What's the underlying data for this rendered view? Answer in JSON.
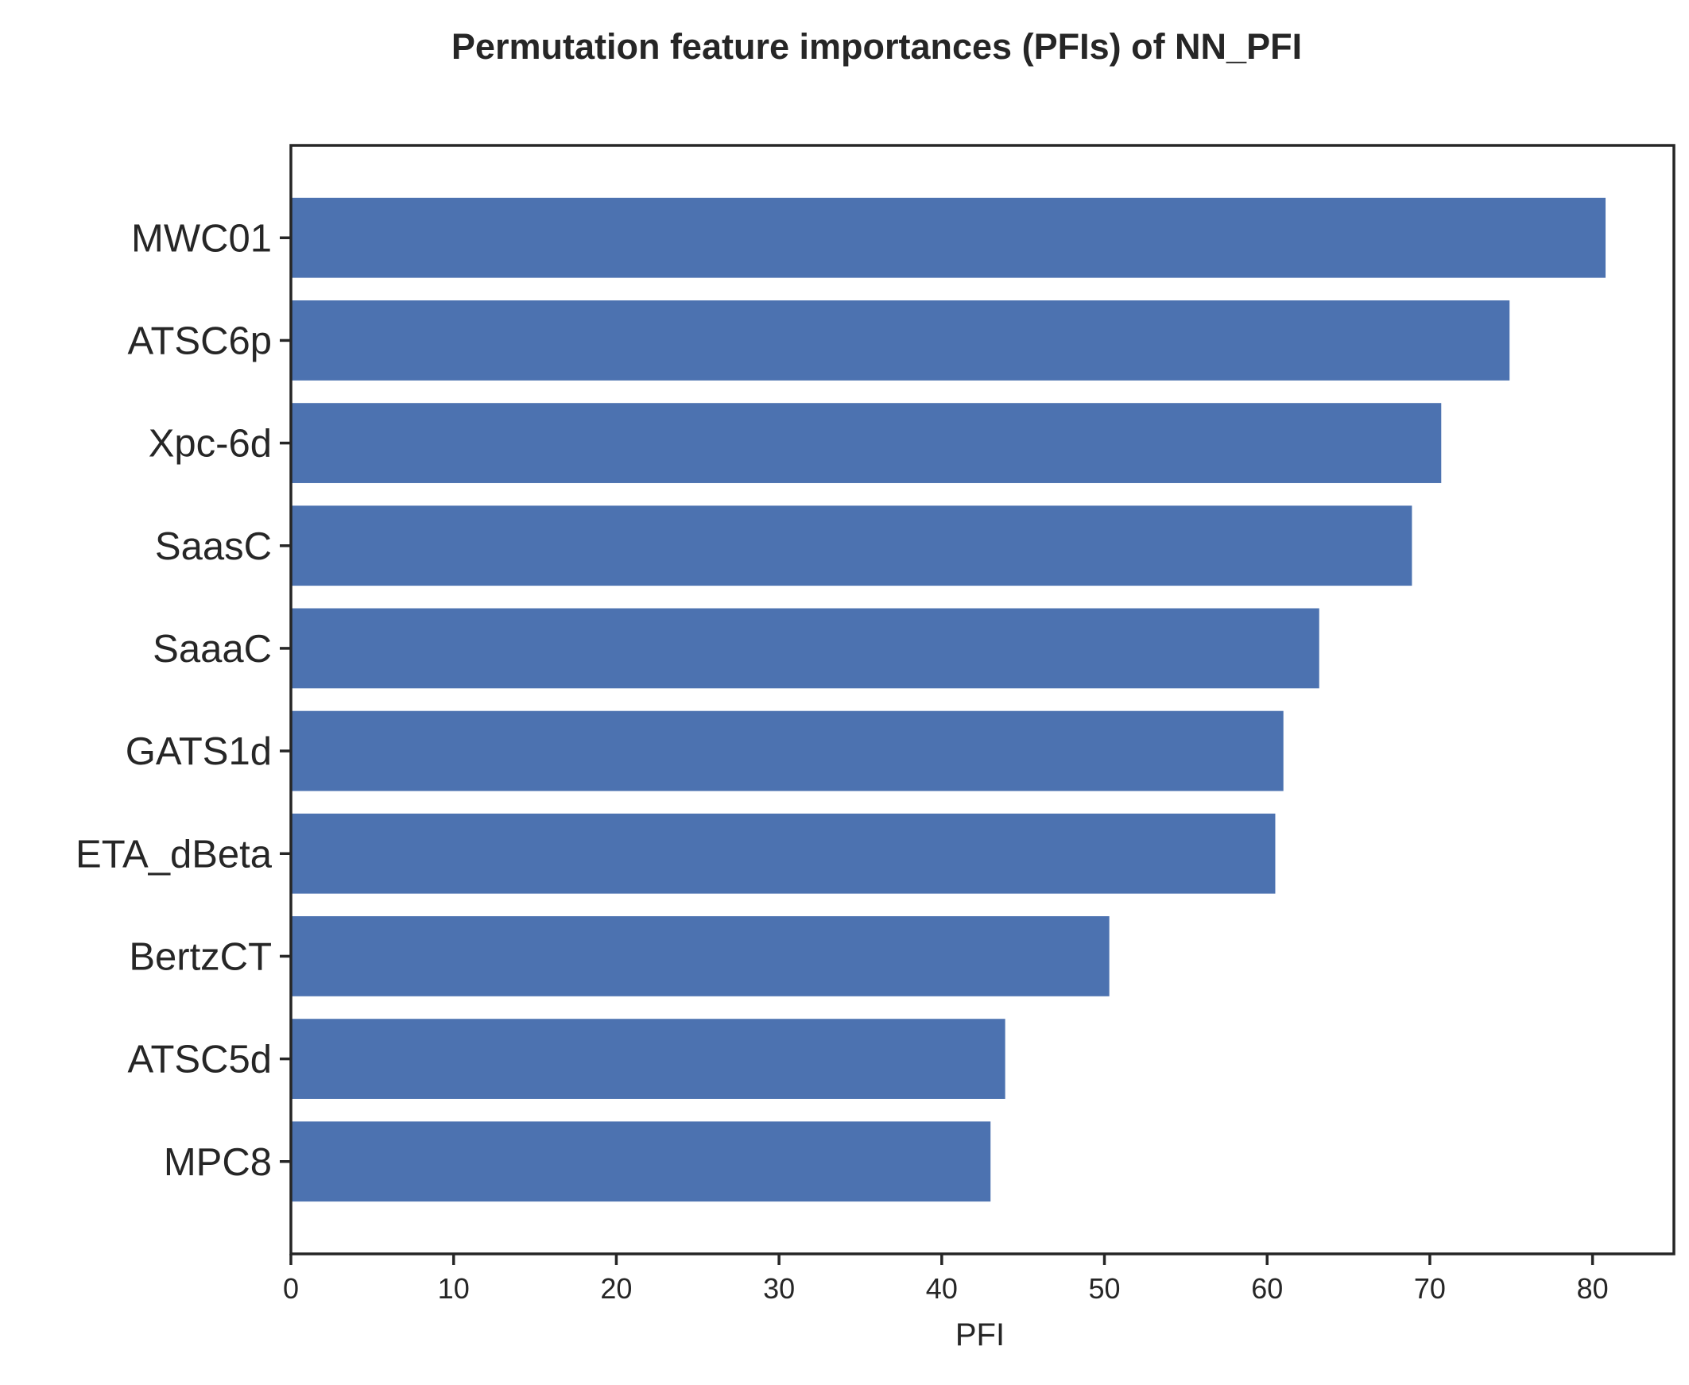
{
  "chart_data": {
    "type": "bar",
    "orientation": "horizontal",
    "title": "Permutation feature importances (PFIs) of NN_PFI",
    "xlabel": "PFI",
    "ylabel": "",
    "xlim": [
      0,
      85
    ],
    "xticks": [
      0,
      10,
      20,
      30,
      40,
      50,
      60,
      70,
      80
    ],
    "grid": false,
    "bar_color": "#4c72b0",
    "categories": [
      "MWC01",
      "ATSC6p",
      "Xpc-6d",
      "SaasC",
      "SaaaC",
      "GATS1d",
      "ETA_dBeta",
      "BertzCT",
      "ATSC5d",
      "MPC8"
    ],
    "values": [
      80.8,
      74.9,
      70.7,
      68.9,
      63.2,
      61.0,
      60.5,
      50.3,
      43.9,
      43.0
    ]
  }
}
